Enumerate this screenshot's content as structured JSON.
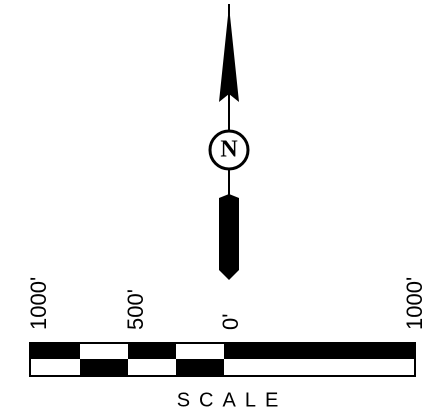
{
  "north_arrow": {
    "label": "N"
  },
  "scale_bar": {
    "labels": [
      "1000'",
      "500'",
      "0'",
      "1000'"
    ],
    "title": "SCALE"
  }
}
